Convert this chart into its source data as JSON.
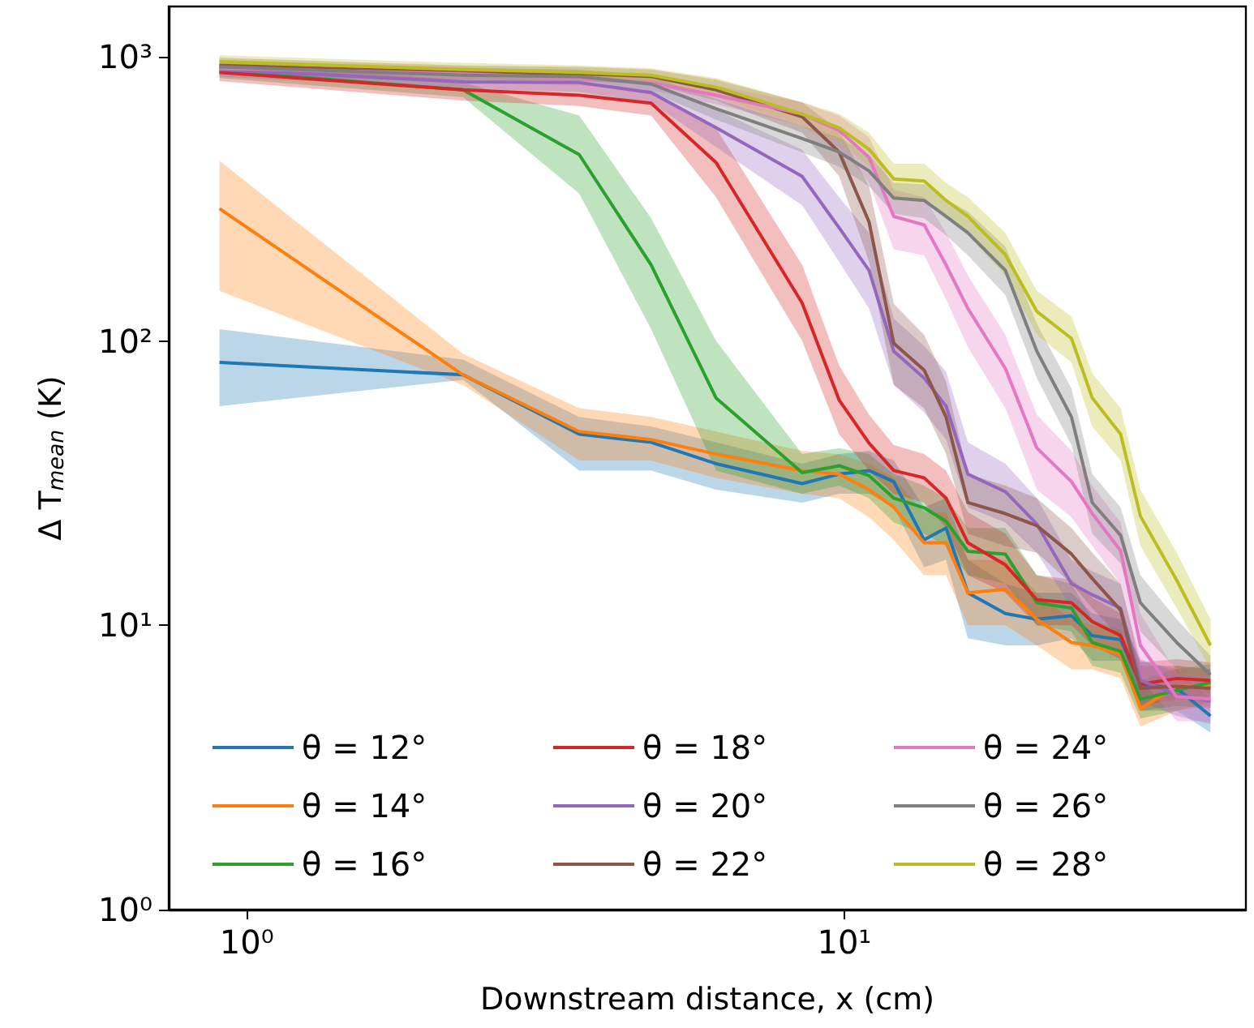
{
  "chart_data": {
    "type": "line",
    "xlabel": "Downstream distance, x (cm)",
    "ylabel": "Δ T$_{mean}$ (K)",
    "log": "xy",
    "xlim": [
      0.74,
      47
    ],
    "ylim": [
      1,
      1500
    ],
    "xticks": [
      {
        "value": 1,
        "label": "10⁰"
      },
      {
        "value": 10,
        "label": "10¹"
      }
    ],
    "yticks": [
      {
        "value": 1,
        "label": "10⁰"
      },
      {
        "value": 10,
        "label": "10¹"
      },
      {
        "value": 100,
        "label": "10²"
      },
      {
        "value": 1000,
        "label": "10³"
      }
    ],
    "grid": false,
    "legend": "bottom left",
    "x": [
      0.9,
      2.3,
      3.6,
      4.75,
      6.1,
      8.5,
      9.8,
      11,
      12.1,
      13.6,
      14.8,
      16.1,
      18.6,
      21,
      24,
      26,
      29,
      31.3,
      36,
      41
    ],
    "series": [
      {
        "name": "θ = 12°",
        "color": "#1f77b4",
        "values": [
          84,
          76,
          47,
          44,
          37,
          31.5,
          34,
          35,
          32,
          20,
          22,
          13,
          11,
          10.5,
          10.8,
          9.2,
          8.9,
          6.2,
          6.0,
          4.8
        ],
        "lower": [
          59,
          73,
          35,
          35,
          30,
          27,
          29,
          29,
          26,
          16,
          17,
          9,
          8.5,
          8.5,
          9,
          7.5,
          7.5,
          5,
          5,
          4.2
        ],
        "upper": [
          110,
          86,
          54,
          50,
          44,
          37,
          40,
          41,
          38,
          26,
          28,
          17,
          14,
          13,
          13,
          11,
          10.5,
          7.5,
          7,
          5.5
        ]
      },
      {
        "name": "θ = 14°",
        "color": "#ff7f0e",
        "values": [
          292,
          76,
          48,
          45,
          40,
          35,
          34,
          30,
          26,
          19.5,
          19.5,
          13,
          13.4,
          10.5,
          8.7,
          8.5,
          7.9,
          5.1,
          6.1,
          6.1
        ],
        "lower": [
          150,
          70,
          38,
          38,
          33,
          29,
          28,
          24,
          20,
          15,
          15,
          10,
          10,
          8.5,
          7,
          7,
          6.5,
          4.4,
          5,
          5.2
        ],
        "upper": [
          430,
          90,
          58,
          54,
          48,
          41,
          40,
          37,
          33,
          25,
          25,
          17,
          17,
          13,
          10.5,
          10,
          9.5,
          6,
          7.2,
          7
        ]
      },
      {
        "name": "θ = 16°",
        "color": "#2ca02c",
        "values": [
          890,
          764,
          452,
          185,
          63,
          34.4,
          36.4,
          33.6,
          28,
          25.9,
          23.2,
          18.2,
          17.8,
          12,
          11.5,
          8.7,
          8.1,
          5.5,
          5.9,
          6.3
        ],
        "lower": [
          840,
          720,
          330,
          110,
          35,
          29,
          31,
          28,
          23,
          21,
          19,
          15,
          14,
          10,
          9.5,
          7.2,
          6.8,
          4.7,
          5,
          5.4
        ],
        "upper": [
          940,
          810,
          620,
          270,
          100,
          40,
          42,
          40,
          34,
          31,
          28,
          22,
          22,
          15,
          14,
          10.5,
          9.6,
          6.4,
          7,
          7.3
        ]
      },
      {
        "name": "θ = 18°",
        "color": "#d62728",
        "values": [
          880,
          764,
          731,
          686,
          424,
          136,
          62,
          43.7,
          35,
          33,
          28,
          19.5,
          16.3,
          12.3,
          12,
          10.3,
          9.2,
          6.2,
          6.5,
          6.4
        ],
        "lower": [
          820,
          700,
          670,
          620,
          320,
          100,
          47,
          35,
          29,
          27,
          22,
          15,
          13,
          10,
          10,
          8.5,
          7.6,
          5.2,
          5.5,
          5.5
        ],
        "upper": [
          940,
          830,
          800,
          760,
          560,
          185,
          82,
          55,
          43,
          40,
          35,
          25,
          21,
          15,
          14.5,
          12.5,
          11,
          7.4,
          7.6,
          7.4
        ]
      },
      {
        "name": "θ = 20°",
        "color": "#9467bd",
        "values": [
          900,
          815,
          810,
          747,
          562,
          379,
          250,
          177,
          92,
          74,
          59,
          34,
          29.5,
          22.7,
          14,
          12.8,
          11.5,
          6.4,
          5.7,
          5.4
        ],
        "lower": [
          850,
          770,
          750,
          690,
          480,
          300,
          190,
          130,
          70,
          56,
          45,
          26,
          23,
          18,
          11.5,
          10.5,
          9.5,
          5.4,
          4.8,
          4.5
        ],
        "upper": [
          950,
          860,
          870,
          810,
          650,
          470,
          320,
          240,
          120,
          96,
          78,
          44,
          37,
          28,
          17,
          15.5,
          14,
          7.6,
          6.8,
          6.4
        ]
      },
      {
        "name": "θ = 22°",
        "color": "#8c564b",
        "values": [
          930,
          880,
          870,
          851,
          764,
          614,
          462,
          262,
          98,
          79,
          54,
          27,
          24.7,
          22.4,
          17.8,
          14.6,
          11.3,
          6.0,
          6.1,
          6.0
        ],
        "lower": [
          870,
          830,
          820,
          800,
          700,
          540,
          380,
          190,
          70,
          58,
          40,
          21,
          19,
          18,
          14,
          11.5,
          9,
          5,
          5.2,
          5.1
        ],
        "upper": [
          990,
          930,
          920,
          900,
          830,
          690,
          550,
          350,
          135,
          105,
          72,
          34,
          31,
          28,
          22,
          18,
          14,
          7.2,
          7.2,
          7
        ]
      },
      {
        "name": "θ = 24°",
        "color": "#e377c2",
        "values": [
          910,
          870,
          840,
          810,
          731,
          628,
          550,
          442,
          274,
          256,
          185,
          130,
          80,
          42,
          32,
          24.7,
          18.3,
          8.5,
          5.6,
          5.5
        ],
        "lower": [
          860,
          820,
          790,
          760,
          680,
          570,
          480,
          360,
          210,
          200,
          140,
          95,
          58,
          30,
          24,
          19,
          14,
          6.5,
          4.6,
          4.6
        ],
        "upper": [
          960,
          920,
          890,
          860,
          790,
          690,
          620,
          520,
          340,
          320,
          240,
          170,
          105,
          55,
          41,
          31,
          23,
          11,
          6.8,
          6.6
        ]
      },
      {
        "name": "θ = 26°",
        "color": "#7f7f7f",
        "values": [
          920,
          860,
          850,
          800,
          655,
          515,
          462,
          396,
          318,
          312,
          274,
          240,
          177,
          92,
          54,
          27,
          20.7,
          12,
          8.7,
          6.7
        ],
        "lower": [
          870,
          810,
          800,
          750,
          600,
          460,
          410,
          350,
          280,
          270,
          235,
          200,
          145,
          74,
          43,
          21,
          16.5,
          9.5,
          7,
          5.7
        ],
        "upper": [
          970,
          910,
          900,
          850,
          710,
          570,
          520,
          450,
          360,
          355,
          315,
          285,
          215,
          115,
          68,
          34,
          26,
          15,
          10.5,
          7.8
        ]
      },
      {
        "name": "θ = 28°",
        "color": "#bcbd22",
        "values": [
          960,
          900,
          880,
          860,
          780,
          628,
          562,
          472,
          371,
          365,
          312,
          274,
          201,
          127,
          102,
          63,
          47,
          24.2,
          14.4,
          8.5
        ],
        "lower": [
          910,
          850,
          830,
          810,
          720,
          570,
          500,
          410,
          320,
          315,
          270,
          235,
          170,
          105,
          84,
          50,
          38,
          19,
          11.5,
          7
        ],
        "upper": [
          1010,
          950,
          930,
          910,
          840,
          690,
          630,
          540,
          420,
          420,
          360,
          320,
          240,
          150,
          122,
          77,
          58,
          30,
          18,
          10.5
        ]
      }
    ]
  }
}
